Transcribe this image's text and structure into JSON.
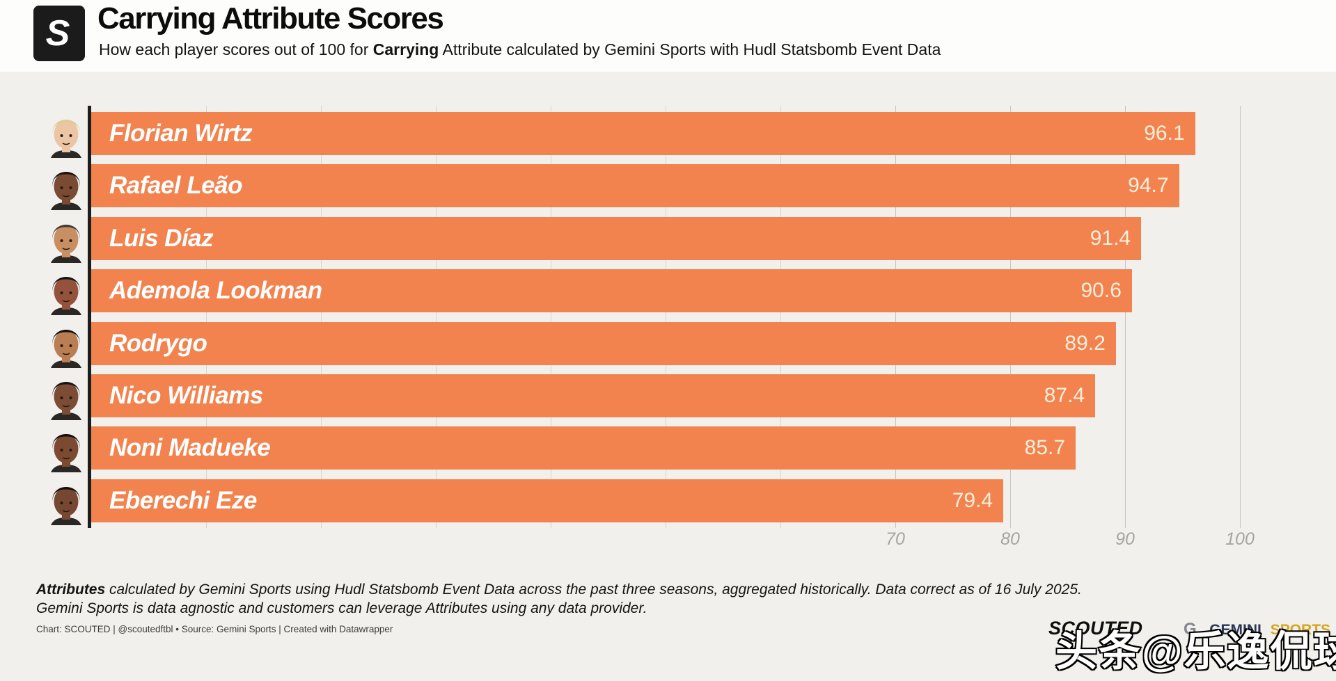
{
  "header": {
    "logo_letter": "S",
    "title": "Carrying Attribute Scores",
    "subtitle_prefix": "How each player scores out of 100 for ",
    "subtitle_bold": "Carrying",
    "subtitle_suffix": " Attribute calculated by Gemini Sports with Hudl Statsbomb Event Data"
  },
  "chart_data": {
    "type": "bar",
    "orientation": "horizontal",
    "title": "Carrying Attribute Scores",
    "categories": [
      "Florian Wirtz",
      "Rafael Leão",
      "Luis Díaz",
      "Ademola Lookman",
      "Rodrygo",
      "Nico Williams",
      "Noni Madueke",
      "Eberechi Eze"
    ],
    "values": [
      96.1,
      94.7,
      91.4,
      90.6,
      89.2,
      87.4,
      85.7,
      79.4
    ],
    "value_label_position": "inside-end",
    "xlim": [
      0,
      100
    ],
    "x_ticks": [
      70,
      80,
      90,
      100
    ],
    "grid": "vertical",
    "legend": "none",
    "bar_color": "#F2834F",
    "value_label_color": "#FBEFDC",
    "avatars": [
      {
        "label": "florian-wirtz-photo",
        "skin": "#ecc5a4",
        "hair": "#ddcb96"
      },
      {
        "label": "rafael-leao-photo",
        "skin": "#7a4a33",
        "hair": "#1c1512"
      },
      {
        "label": "luis-diaz-photo",
        "skin": "#c98f62",
        "hair": "#3d3b37"
      },
      {
        "label": "ademola-lookman-photo",
        "skin": "#94523d",
        "hair": "#171210"
      },
      {
        "label": "rodrygo-photo",
        "skin": "#b97f52",
        "hair": "#17120f"
      },
      {
        "label": "nico-williams-photo",
        "skin": "#7c4c34",
        "hair": "#1a1410"
      },
      {
        "label": "noni-madueke-photo",
        "skin": "#7b4a31",
        "hair": "#15100d"
      },
      {
        "label": "eberechi-eze-photo",
        "skin": "#774831",
        "hair": "#14100c"
      }
    ]
  },
  "footer": {
    "note1_bold": "Attributes",
    "note1_rest": " calculated by Gemini Sports using Hudl Statsbomb Event Data across the past three seasons, aggregated historically. Data correct as of 16 July 2025.",
    "note2": "Gemini Sports is data agnostic and customers can leverage Attributes using any data provider.",
    "credit": "Chart: SCOUTED | @scoutedftbl • Source: Gemini Sports | Created with Datawrapper"
  },
  "branding": {
    "scouted": "SCOUTED",
    "gemini_g": "G",
    "gemini_dot": ".",
    "gemini": "GEMINI",
    "sports": "SPORTS"
  },
  "watermark": {
    "text": "头条@乐逸侃球"
  }
}
